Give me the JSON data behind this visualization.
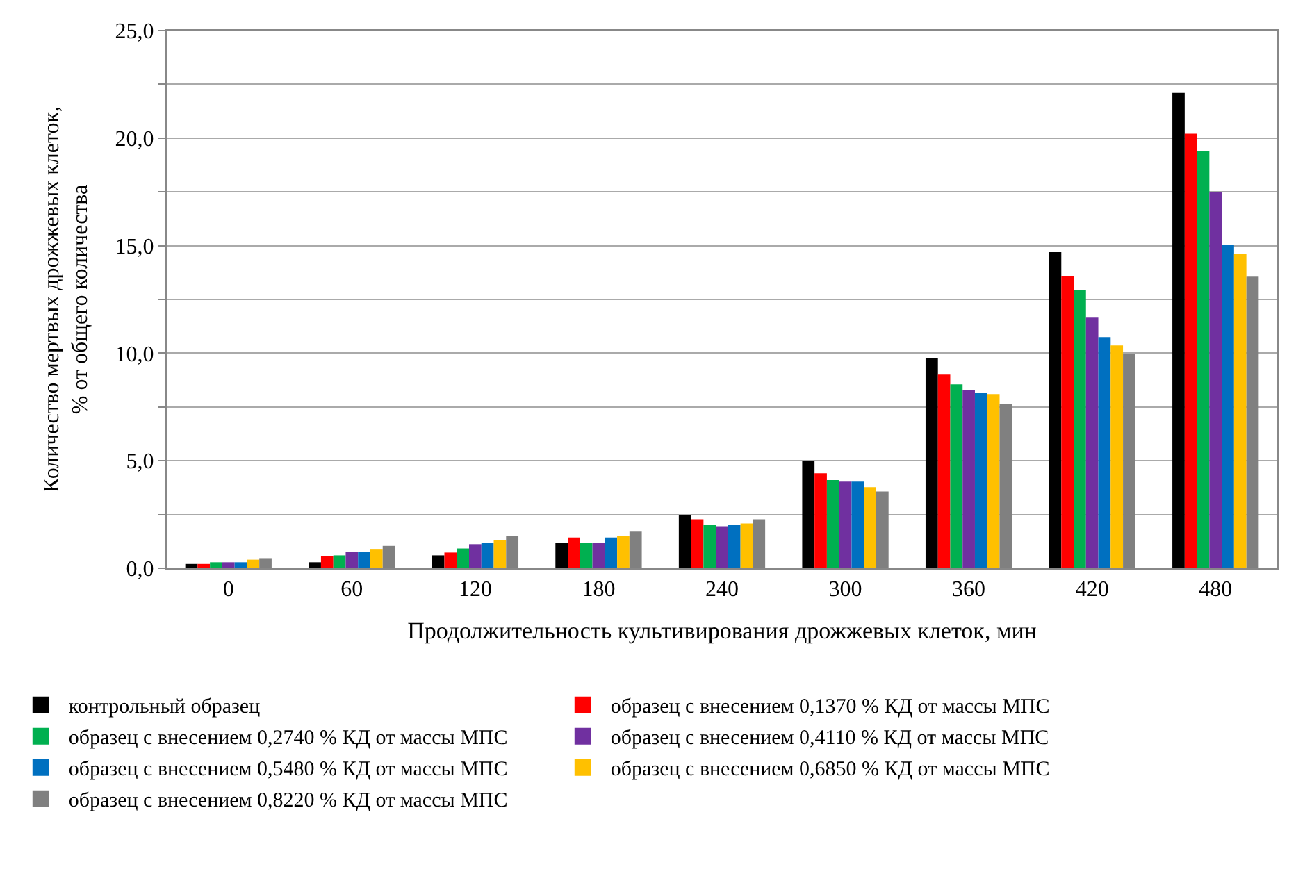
{
  "chart_data": {
    "type": "bar",
    "xlabel": "Продолжительность культивирования дрожжевых клеток, мин",
    "ylabel": "Количество мертвых дрожжевых клеток,\n% от общего количества",
    "categories": [
      "0",
      "60",
      "120",
      "180",
      "240",
      "300",
      "360",
      "420",
      "480"
    ],
    "series": [
      {
        "name": "контрольный образец",
        "color": "#000000",
        "values": [
          0.2,
          0.28,
          0.6,
          1.18,
          2.48,
          5.0,
          9.77,
          14.7,
          22.1
        ]
      },
      {
        "name": "образец с внесением 0,1370 % КД от массы МПС",
        "color": "#ff0000",
        "values": [
          0.2,
          0.55,
          0.73,
          1.43,
          2.28,
          4.42,
          9.0,
          13.6,
          20.2
        ]
      },
      {
        "name": "образец с внесением 0,2740 % КД от массы МПС",
        "color": "#00b050",
        "values": [
          0.28,
          0.6,
          0.92,
          1.18,
          2.02,
          4.1,
          8.55,
          12.95,
          19.4
        ]
      },
      {
        "name": "образец с внесением 0,4110 % КД от массы МПС",
        "color": "#7030a0",
        "values": [
          0.28,
          0.75,
          1.12,
          1.18,
          1.95,
          4.03,
          8.29,
          11.65,
          17.5
        ]
      },
      {
        "name": "образец с внесением 0,5480 % КД от массы МПС",
        "color": "#0070c0",
        "values": [
          0.28,
          0.75,
          1.18,
          1.43,
          2.02,
          4.03,
          8.16,
          10.75,
          15.05
        ]
      },
      {
        "name": "образец с внесением 0,6850 % КД от массы МПС",
        "color": "#ffc000",
        "values": [
          0.4,
          0.9,
          1.3,
          1.5,
          2.08,
          3.77,
          8.1,
          10.36,
          14.6
        ]
      },
      {
        "name": "образец с внесением 0,8220 % КД от массы МПС",
        "color": "#808080",
        "values": [
          0.47,
          1.04,
          1.5,
          1.7,
          2.28,
          3.57,
          7.64,
          9.97,
          13.56
        ]
      }
    ],
    "ylim": [
      0,
      25
    ],
    "yticks": [
      {
        "value": 0,
        "label": "0,0"
      },
      {
        "value": 2.5,
        "label": null
      },
      {
        "value": 5,
        "label": "5,0"
      },
      {
        "value": 7.5,
        "label": null
      },
      {
        "value": 10,
        "label": "10,0"
      },
      {
        "value": 12.5,
        "label": null
      },
      {
        "value": 15,
        "label": "15,0"
      },
      {
        "value": 17.5,
        "label": null
      },
      {
        "value": 20,
        "label": "20,0"
      },
      {
        "value": 22.5,
        "label": null
      },
      {
        "value": 25,
        "label": "25,0"
      }
    ],
    "grid": "y",
    "legend": "bottom"
  }
}
